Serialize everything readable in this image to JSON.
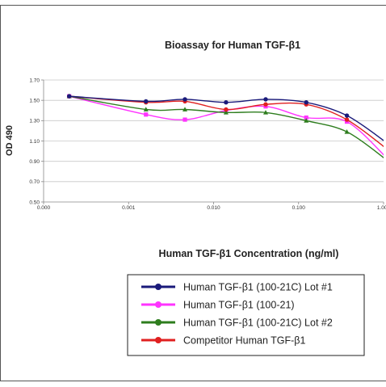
{
  "chart_data": {
    "type": "line",
    "title": "Bioassay for Human TGF-β1",
    "xlabel": "Human TGF-β1 Concentration (ng/ml)",
    "ylabel": "OD 490",
    "x_scale": "log",
    "x_ticks": [
      "0.000",
      "0.001",
      "0.010",
      "0.100",
      "1.000"
    ],
    "y_ticks": [
      "0.50",
      "0.70",
      "0.90",
      "1.10",
      "1.30",
      "1.50",
      "1.70"
    ],
    "ylim": [
      0.5,
      1.7
    ],
    "grid": "horizontal",
    "legend_position": "bottom",
    "x": [
      0.0002,
      0.0016,
      0.0046,
      0.014,
      0.041,
      0.123,
      0.37,
      1.1
    ],
    "series": [
      {
        "name": "Human TGF-β1 (100-21C) Lot #1",
        "color": "#1a1a7a",
        "marker": "circle",
        "values": [
          1.54,
          1.49,
          1.51,
          1.48,
          1.51,
          1.48,
          1.35,
          1.08
        ]
      },
      {
        "name": "Human TGF-β1 (100-21)",
        "color": "#ff33ff",
        "marker": "square",
        "values": [
          1.54,
          1.36,
          1.31,
          1.4,
          1.44,
          1.33,
          1.29,
          0.93
        ]
      },
      {
        "name": "Human TGF-β1 (100-21C) Lot #2",
        "color": "#2e7d1e",
        "marker": "triangle",
        "values": [
          1.54,
          1.41,
          1.41,
          1.38,
          1.38,
          1.3,
          1.19,
          0.91
        ]
      },
      {
        "name": "Competitor Human TGF-β1",
        "color": "#e02020",
        "marker": "circle",
        "values": [
          1.54,
          1.48,
          1.49,
          1.41,
          1.46,
          1.46,
          1.31,
          1.02
        ]
      }
    ]
  }
}
